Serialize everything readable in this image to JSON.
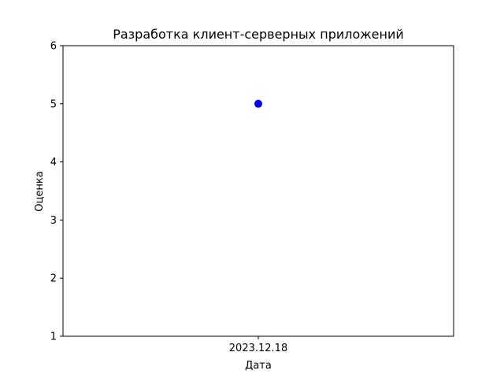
{
  "chart_data": {
    "type": "scatter",
    "title": "Разработка клиент-серверных приложений",
    "xlabel": "Дата",
    "ylabel": "Оценка",
    "x": [
      "2023.12.18"
    ],
    "series": [
      {
        "values": [
          5
        ],
        "color": "#0000ff"
      }
    ],
    "ylim": [
      1,
      6
    ],
    "yticks": [
      "1",
      "2",
      "3",
      "4",
      "5",
      "6"
    ],
    "grid": false,
    "legend": "none"
  }
}
